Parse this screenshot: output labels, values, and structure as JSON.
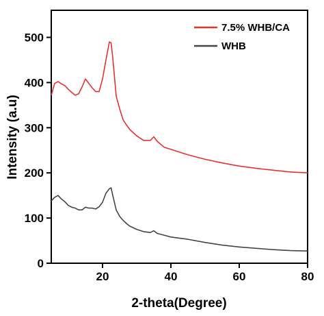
{
  "chart_data": {
    "type": "line",
    "title": "",
    "xlabel": "2-theta(Degree)",
    "ylabel": "Intensity (a.u)",
    "xlim": [
      5,
      80
    ],
    "ylim": [
      0,
      560
    ],
    "xticks": [
      20,
      40,
      60,
      80
    ],
    "yticks": [
      0,
      100,
      200,
      300,
      400,
      500
    ],
    "grid": false,
    "legend_position": "top-right",
    "series": [
      {
        "name": "7.5% WHB/CA",
        "color": "#e8302f",
        "x": [
          5,
          6,
          7,
          8,
          9,
          10,
          11,
          12,
          13,
          14,
          15,
          16,
          17,
          18,
          19,
          20,
          21,
          22,
          22.5,
          23,
          24,
          25,
          26,
          27,
          28,
          30,
          32,
          34,
          35,
          36,
          38,
          40,
          45,
          50,
          55,
          60,
          65,
          70,
          75,
          80
        ],
        "y": [
          372,
          398,
          402,
          397,
          393,
          385,
          378,
          372,
          375,
          390,
          408,
          398,
          388,
          380,
          380,
          408,
          450,
          490,
          488,
          455,
          370,
          342,
          318,
          306,
          296,
          282,
          272,
          272,
          280,
          270,
          257,
          252,
          240,
          230,
          222,
          215,
          210,
          206,
          202,
          200
        ]
      },
      {
        "name": "WHB",
        "color": "#444444",
        "x": [
          5,
          6,
          7,
          8,
          9,
          10,
          11,
          12,
          13,
          14,
          15,
          16,
          17,
          18,
          19,
          20,
          21,
          22,
          22.5,
          23,
          24,
          25,
          26,
          27,
          28,
          30,
          32,
          34,
          35,
          36,
          38,
          40,
          45,
          50,
          55,
          60,
          65,
          70,
          75,
          80
        ],
        "y": [
          138,
          146,
          150,
          142,
          136,
          128,
          124,
          122,
          118,
          118,
          124,
          122,
          122,
          120,
          125,
          135,
          155,
          165,
          167,
          150,
          118,
          104,
          95,
          88,
          82,
          75,
          70,
          68,
          72,
          66,
          62,
          58,
          53,
          46,
          40,
          36,
          33,
          30,
          28,
          27
        ]
      }
    ]
  }
}
